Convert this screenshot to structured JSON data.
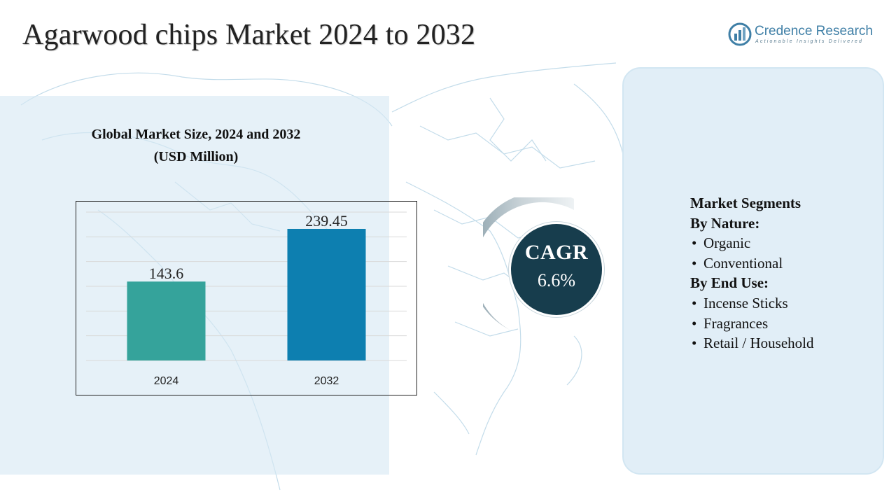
{
  "header": {
    "title": "Agarwood chips Market 2024 to 2032"
  },
  "logo": {
    "icon": "credence-logo-icon",
    "name": "Credence Research",
    "tagline": "Actionable Insights Delivered"
  },
  "chart": {
    "title_line1": "Global Market Size, 2024 and 2032",
    "title_line2": "(USD Million)"
  },
  "chart_data": {
    "type": "bar",
    "categories": [
      "2024",
      "2032"
    ],
    "values": [
      143.6,
      239.45
    ],
    "value_labels": [
      "143.6",
      "239.45"
    ],
    "title": "Global Market Size, 2024 and 2032 (USD Million)",
    "xlabel": "",
    "ylabel": "",
    "ylim": [
      0,
      270
    ],
    "grid": true,
    "colors": [
      "#35a39b",
      "#0d7fb0"
    ]
  },
  "cagr": {
    "label": "CAGR",
    "value": "6.6%"
  },
  "segments": {
    "title": "Market Segments",
    "groups": [
      {
        "heading": "By Nature:",
        "items": [
          "Organic",
          "Conventional"
        ]
      },
      {
        "heading": "By End Use:",
        "items": [
          "Incense Sticks",
          "Fragrances",
          "Retail / Household"
        ]
      }
    ]
  },
  "colors": {
    "panel": "#d6e8f4",
    "cagr_circle": "#173d4d",
    "logo": "#3f7fa6",
    "map_lines": "#c3dcea"
  }
}
